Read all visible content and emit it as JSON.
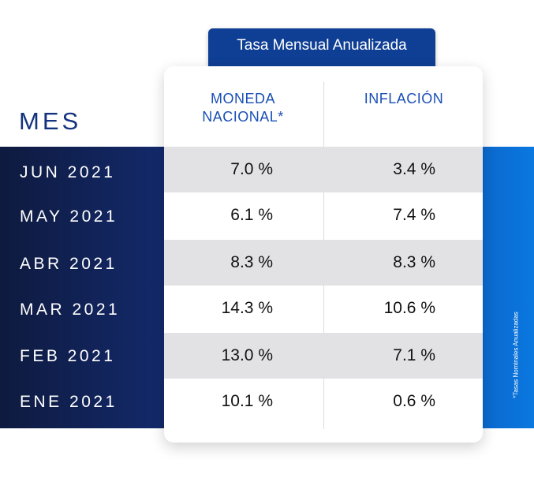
{
  "header": {
    "tab_label": "Tasa Mensual Anualizada",
    "mes_label": "MES"
  },
  "columns": {
    "moneda_line1": "MONEDA",
    "moneda_line2": "NACIONAL*",
    "inflacion": "INFLACIÓN"
  },
  "rows": [
    {
      "month": "JUN 2021",
      "moneda": "7.0 %",
      "inflacion": "3.4 %"
    },
    {
      "month": "MAY 2021",
      "moneda": "6.1 %",
      "inflacion": "7.4 %"
    },
    {
      "month": "ABR 2021",
      "moneda": "8.3 %",
      "inflacion": "8.3 %"
    },
    {
      "month": "MAR 2021",
      "moneda": "14.3 %",
      "inflacion": "10.6 %"
    },
    {
      "month": "FEB 2021",
      "moneda": "13.0 %",
      "inflacion": "7.1 %"
    },
    {
      "month": "ENE 2021",
      "moneda": "10.1 %",
      "inflacion": "0.6 %"
    }
  ],
  "footnote": "*Tasas Nominales Anualizadas",
  "colors": {
    "accent": "#1a4fb5",
    "tab": "#0f3f94",
    "band_dark": "#0e1a3f",
    "band_light": "#0a78e0"
  }
}
